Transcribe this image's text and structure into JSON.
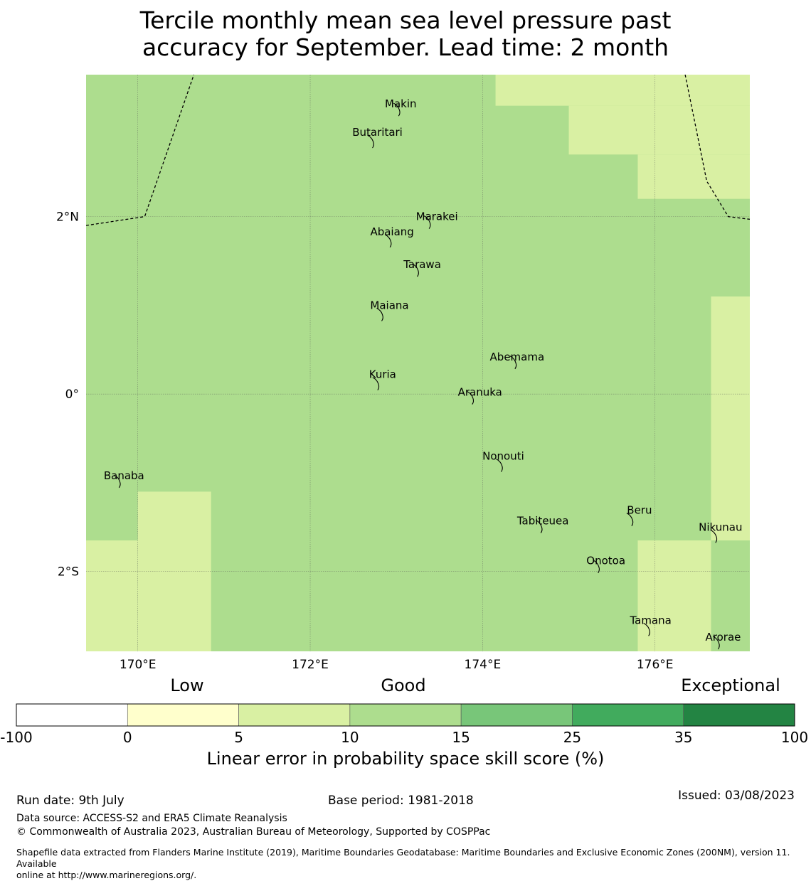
{
  "title": {
    "line1": "Tercile monthly mean sea level pressure past",
    "line2": "accuracy for September. Lead time: 2 month"
  },
  "map": {
    "lon_range": [
      169.4,
      177.1
    ],
    "lat_range": [
      -2.9,
      3.6
    ],
    "grid_lons": [
      170,
      172,
      174,
      176
    ],
    "grid_lats": [
      2,
      0,
      -2
    ],
    "lon_tick_labels": [
      "170°E",
      "172°E",
      "174°E",
      "176°E"
    ],
    "lat_tick_labels": [
      "2°N",
      "0°",
      "2°S"
    ],
    "skill_cells": [
      {
        "lon": [
          169.4,
          177.1
        ],
        "lat": [
          -2.9,
          3.6
        ],
        "category": "10-15"
      },
      {
        "lon": [
          174.15,
          177.1
        ],
        "lat": [
          3.25,
          3.6
        ],
        "category": "5-10"
      },
      {
        "lon": [
          175.0,
          177.1
        ],
        "lat": [
          2.7,
          3.25
        ],
        "category": "5-10"
      },
      {
        "lon": [
          175.8,
          177.1
        ],
        "lat": [
          2.2,
          2.7
        ],
        "category": "5-10"
      },
      {
        "lon": [
          176.65,
          177.1
        ],
        "lat": [
          -1.65,
          1.1
        ],
        "category": "5-10"
      },
      {
        "lon": [
          175.8,
          176.65
        ],
        "lat": [
          -2.9,
          -1.65
        ],
        "category": "5-10"
      },
      {
        "lon": [
          169.4,
          170.0
        ],
        "lat": [
          -2.9,
          -1.65
        ],
        "category": "5-10"
      },
      {
        "lon": [
          170.0,
          170.85
        ],
        "lat": [
          -2.9,
          -1.1
        ],
        "category": "5-10"
      }
    ],
    "places": [
      {
        "name": "Makin",
        "lon": 173.05,
        "lat": 3.27
      },
      {
        "name": "Butaritari",
        "lon": 172.78,
        "lat": 2.95
      },
      {
        "name": "Marakei",
        "lon": 173.47,
        "lat": 2.0
      },
      {
        "name": "Abaiang",
        "lon": 172.95,
        "lat": 1.83
      },
      {
        "name": "Tarawa",
        "lon": 173.3,
        "lat": 1.46
      },
      {
        "name": "Maiana",
        "lon": 172.92,
        "lat": 1.0
      },
      {
        "name": "Abemama",
        "lon": 174.4,
        "lat": 0.42
      },
      {
        "name": "Kuria",
        "lon": 172.84,
        "lat": 0.22
      },
      {
        "name": "Aranuka",
        "lon": 173.97,
        "lat": 0.02
      },
      {
        "name": "Nonouti",
        "lon": 174.24,
        "lat": -0.7
      },
      {
        "name": "Banaba",
        "lon": 169.84,
        "lat": -0.92
      },
      {
        "name": "Beru",
        "lon": 175.82,
        "lat": -1.31
      },
      {
        "name": "Tabiteuea",
        "lon": 174.7,
        "lat": -1.43
      },
      {
        "name": "Nikunau",
        "lon": 176.76,
        "lat": -1.5
      },
      {
        "name": "Onotoa",
        "lon": 175.43,
        "lat": -1.88
      },
      {
        "name": "Tamana",
        "lon": 175.95,
        "lat": -2.55
      },
      {
        "name": "Arorae",
        "lon": 176.79,
        "lat": -2.74
      }
    ],
    "eez_boundaries": [
      [
        [
          169.4,
          1.9
        ],
        [
          170.08,
          2.0
        ],
        [
          170.65,
          3.6
        ]
      ],
      [
        [
          176.35,
          3.6
        ],
        [
          176.6,
          2.4
        ],
        [
          176.85,
          2.0
        ],
        [
          177.1,
          1.97
        ]
      ]
    ]
  },
  "legend": {
    "category_labels": [
      "Low",
      "Good",
      "Exceptional"
    ],
    "bins": [
      {
        "from": -100,
        "to": 0,
        "color": "#ffffff"
      },
      {
        "from": 0,
        "to": 5,
        "color": "#ffffcc"
      },
      {
        "from": 5,
        "to": 10,
        "color": "#d9f0a3"
      },
      {
        "from": 10,
        "to": 15,
        "color": "#addd8e"
      },
      {
        "from": 15,
        "to": 25,
        "color": "#78c679"
      },
      {
        "from": 25,
        "to": 35,
        "color": "#41ab5d"
      },
      {
        "from": 35,
        "to": 100,
        "color": "#238443"
      }
    ],
    "tick_labels": [
      "-100",
      "0",
      "5",
      "10",
      "15",
      "25",
      "35",
      "100"
    ],
    "title": "Linear error in probability space skill score (%)"
  },
  "footer": {
    "run_date": "Run date: 9th July",
    "base_period": "Base period: 1981-2018",
    "issued": "Issued: 03/08/2023",
    "data_source": "Data source: ACCESS-S2 and ERA5 Climate Reanalysis",
    "copyright": "© Commonwealth of Australia 2023, Australian Bureau of Meteorology, Supported by COSPPac",
    "shapefile_line1": "Shapefile data extracted from Flanders Marine Institute (2019), Maritime Boundaries Geodatabase: Maritime Boundaries and Exclusive Economic Zones (200NM), version 11. Available",
    "shapefile_line2": "online at http://www.marineregions.org/."
  }
}
